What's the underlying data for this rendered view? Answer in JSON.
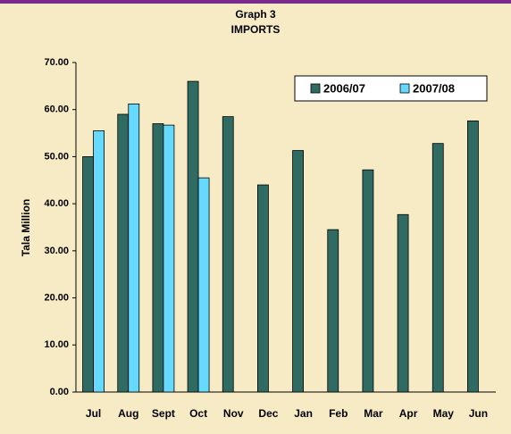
{
  "chart_data": {
    "type": "bar",
    "title": "Graph 3",
    "subtitle": "IMPORTS",
    "y_label": "Tala Million",
    "categories": [
      "Jul",
      "Aug",
      "Sept",
      "Oct",
      "Nov",
      "Dec",
      "Jan",
      "Feb",
      "Mar",
      "Apr",
      "May",
      "Jun"
    ],
    "series": [
      {
        "name": "2006/07",
        "color": "#2f6b62",
        "values": [
          50,
          59,
          57,
          66,
          58.5,
          44,
          51.3,
          34.5,
          47.2,
          37.7,
          52.8,
          57.6
        ]
      },
      {
        "name": "2007/08",
        "color": "#66d9ff",
        "values": [
          55.5,
          61.2,
          56.7,
          45.5,
          null,
          null,
          null,
          null,
          null,
          null,
          null,
          null
        ]
      }
    ],
    "ylim": [
      0,
      70
    ],
    "yticks": [
      {
        "value": 0,
        "label": "0.00"
      },
      {
        "value": 10,
        "label": "10.00"
      },
      {
        "value": 20,
        "label": "20.00"
      },
      {
        "value": 30,
        "label": "30.00"
      },
      {
        "value": 40,
        "label": "40.00"
      },
      {
        "value": 50,
        "label": "50.00"
      },
      {
        "value": 60,
        "label": "60.00"
      },
      {
        "value": 70,
        "label": "70.00"
      }
    ],
    "grid": false,
    "legend": "upper right"
  }
}
